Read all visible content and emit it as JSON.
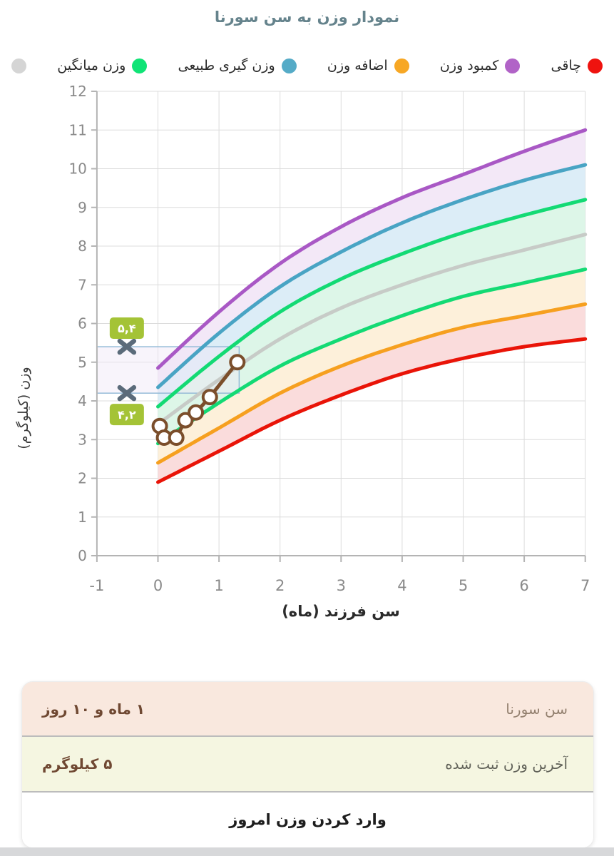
{
  "legend": {
    "items": [
      {
        "label": "چاقی",
        "color": "#ef130f"
      },
      {
        "label": "کمبود وزن",
        "color": "#b163c7"
      },
      {
        "label": "اضافه وزن",
        "color": "#f7a724"
      },
      {
        "label": "وزن گیری طبیعی",
        "color": "#55abc7"
      },
      {
        "label": "وزن میانگین",
        "color": "#10e476"
      },
      {
        "label": "",
        "color": "#d5d5d5"
      }
    ]
  },
  "chart_data": {
    "type": "line",
    "title": "نمودار وزن به سن سورنا",
    "xlabel": "سن فرزند (ماه)",
    "ylabel": "وزن (کیلوگرم)",
    "xlim": [
      -1,
      7
    ],
    "ylim": [
      0,
      12
    ],
    "x_ticks": [
      -1,
      0,
      1,
      2,
      3,
      4,
      5,
      6,
      7
    ],
    "y_ticks": [
      0,
      1,
      2,
      3,
      4,
      5,
      6,
      7,
      8,
      9,
      10,
      11,
      12
    ],
    "grid": true,
    "months": [
      0,
      1,
      2,
      3,
      4,
      5,
      6,
      7
    ],
    "series": [
      {
        "id": "band-top-line",
        "color": "#a958c5",
        "values": [
          4.85,
          6.3,
          7.55,
          8.5,
          9.25,
          9.85,
          10.45,
          11.0
        ]
      },
      {
        "id": "upper2-line",
        "color": "#49a4c4",
        "values": [
          4.35,
          5.75,
          6.95,
          7.85,
          8.6,
          9.2,
          9.7,
          10.1
        ]
      },
      {
        "id": "upper1-line",
        "color": "#13da74",
        "values": [
          3.85,
          5.15,
          6.3,
          7.15,
          7.8,
          8.35,
          8.8,
          9.2
        ]
      },
      {
        "id": "median-line",
        "color": "#c7cbc7",
        "values": [
          3.4,
          4.55,
          5.6,
          6.4,
          7.0,
          7.5,
          7.9,
          8.3
        ]
      },
      {
        "id": "lower1-line",
        "color": "#13da74",
        "values": [
          2.9,
          3.95,
          4.9,
          5.6,
          6.2,
          6.7,
          7.05,
          7.4
        ]
      },
      {
        "id": "lower2-line",
        "color": "#f6a01f",
        "values": [
          2.4,
          3.3,
          4.2,
          4.9,
          5.45,
          5.9,
          6.2,
          6.5
        ]
      },
      {
        "id": "band-bottom-line",
        "color": "#e91408",
        "values": [
          1.9,
          2.7,
          3.5,
          4.15,
          4.7,
          5.1,
          5.4,
          5.6
        ]
      }
    ],
    "bands": [
      {
        "upper": 0,
        "lower": 1,
        "fill": "#f3e8f7"
      },
      {
        "upper": 1,
        "lower": 2,
        "fill": "#dcedf7"
      },
      {
        "upper": 2,
        "lower": 4,
        "fill": "#ddf6e8"
      },
      {
        "upper": 4,
        "lower": 5,
        "fill": "#fdf0da"
      },
      {
        "upper": 5,
        "lower": 6,
        "fill": "#fadcdc"
      }
    ],
    "child_series": {
      "color": "#7b4e2b",
      "points": [
        [
          0.03,
          3.35
        ],
        [
          0.1,
          3.05
        ],
        [
          0.3,
          3.05
        ],
        [
          0.45,
          3.5
        ],
        [
          0.62,
          3.7
        ],
        [
          0.85,
          4.1
        ],
        [
          1.3,
          5.0
        ]
      ]
    },
    "annotation": {
      "highlight_box": {
        "x_start": -1,
        "x_end": 1.33,
        "y_bottom": 4.2,
        "y_top": 5.4,
        "border_color": "#90b8d6",
        "fill": "rgba(240,230,247,0.45)"
      },
      "marker_color": "#5b6b7a",
      "label_bg": "#a4c336",
      "markers": [
        {
          "x": -0.51,
          "y": 5.4,
          "label": "۵,۴"
        },
        {
          "x": -0.51,
          "y": 4.2,
          "label": "۴,۲"
        }
      ]
    }
  },
  "summary": {
    "rows": [
      {
        "label": "سن سورنا",
        "value": "۱ ماه و ۱۰ روز"
      },
      {
        "label": "آخرین وزن ثبت شده",
        "value": "۵ کیلوگرم"
      }
    ],
    "button_label": "وارد کردن وزن امروز"
  },
  "colors": {
    "title": "#65838c",
    "age_row_bg": "#f9e8de",
    "weight_row_bg": "#f5f6e1",
    "value_text": "#6f4832",
    "grid": "#dcdcdc",
    "axis": "#b4b4b4",
    "tick_label": "#8a8a8a"
  }
}
